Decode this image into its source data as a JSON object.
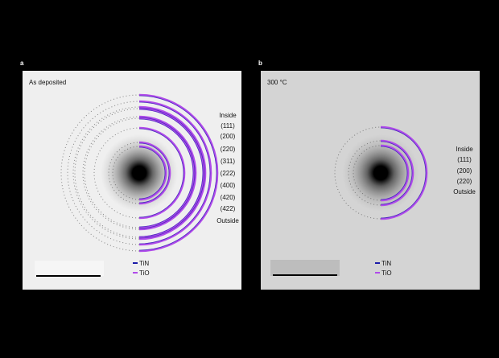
{
  "panels": [
    {
      "letter": "a",
      "condition": "As deposited",
      "ring_labels": [
        "Inside",
        "(111)",
        "(200)",
        "(220)",
        "(311)",
        "(222)",
        "(400)",
        "(420)",
        "(422)",
        "Outside"
      ],
      "background": "#efefef",
      "scale_box_color": "#f6f6f6"
    },
    {
      "letter": "b",
      "condition": "300 °C",
      "ring_labels": [
        "Inside",
        "(111)",
        "(200)",
        "(220)",
        "Outside"
      ],
      "background": "#d4d4d4",
      "scale_box_color": "#bdbdbd"
    }
  ],
  "legend": [
    {
      "label": "TiN",
      "color": "#1a1aa8"
    },
    {
      "label": "TiO",
      "color": "#b04bea"
    }
  ]
}
